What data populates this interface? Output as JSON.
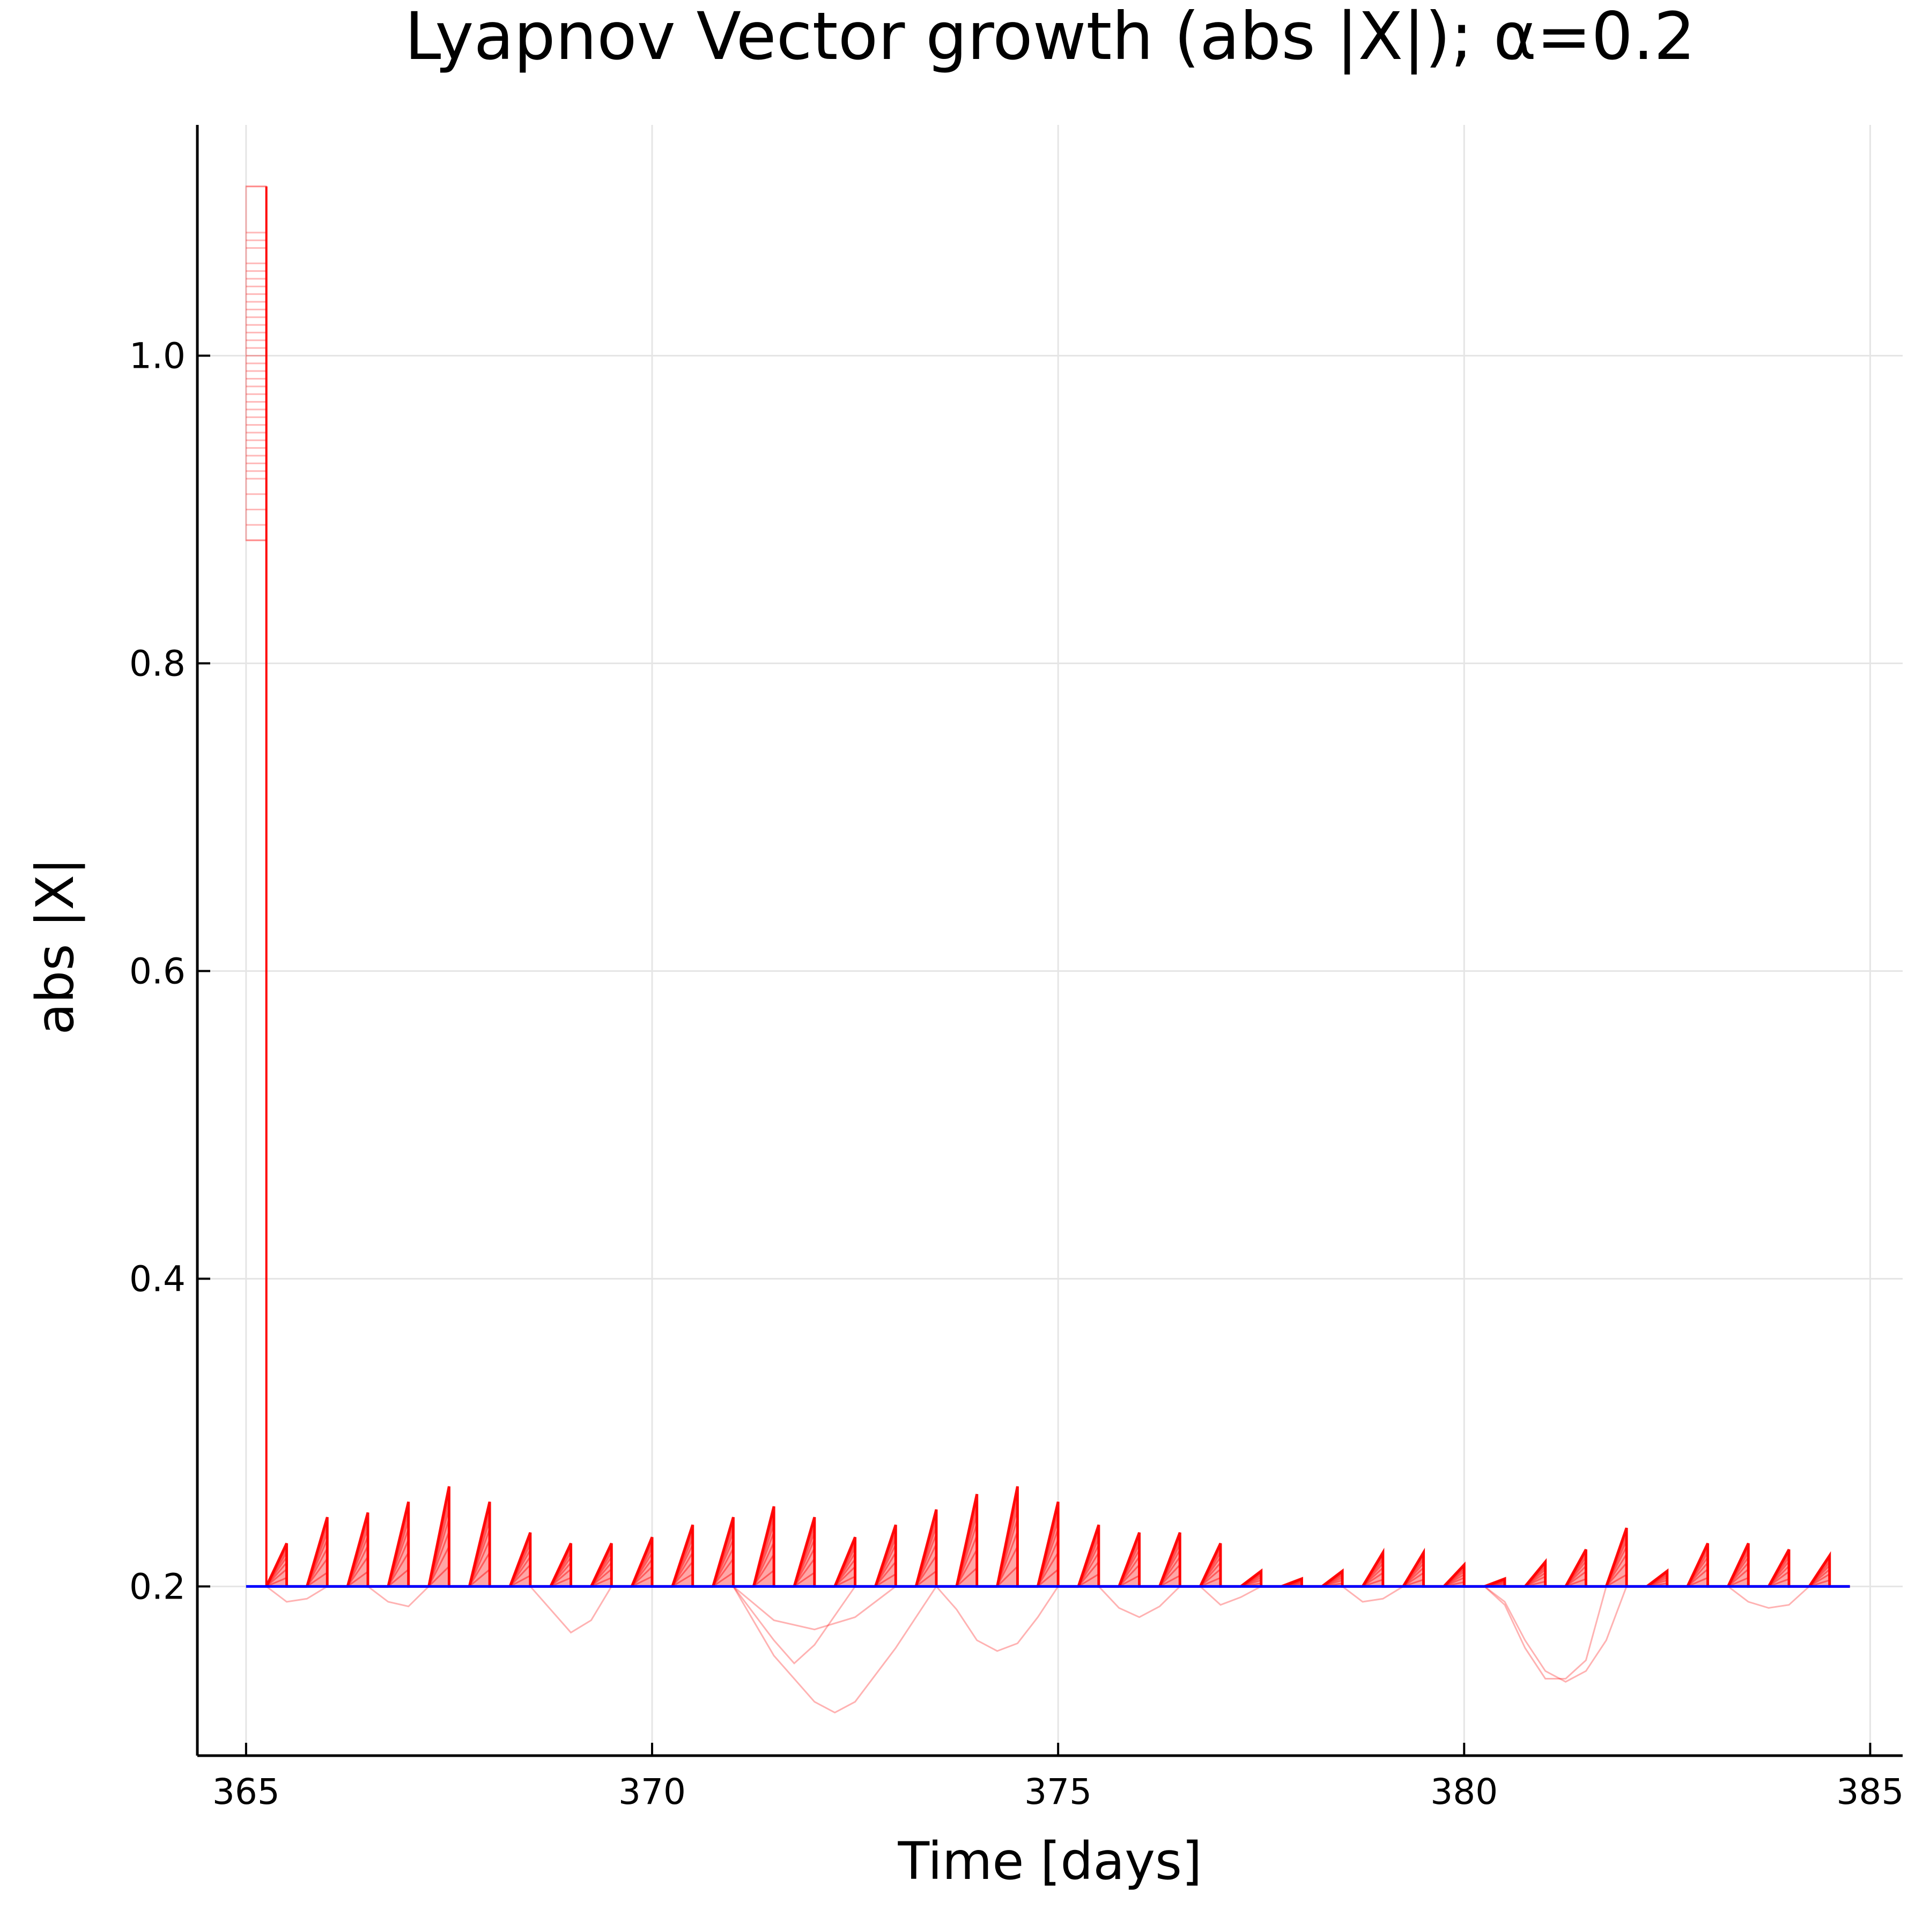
{
  "chart_data": {
    "type": "line",
    "title": "Lyapnov Vector growth (abs |X|); α=0.2",
    "xlabel": "Time [days]",
    "ylabel": "abs |X|",
    "xlim": [
      364.4,
      385.4
    ],
    "ylim": [
      0.09,
      1.15
    ],
    "xticks": [
      365,
      370,
      375,
      380,
      385
    ],
    "xtick_labels": [
      "365",
      "370",
      "375",
      "380",
      "385"
    ],
    "yticks": [
      0.2,
      0.4,
      0.6,
      0.8,
      1.0
    ],
    "ytick_labels": [
      "0.2",
      "0.4",
      "0.6",
      "0.8",
      "1.0"
    ],
    "grid": true,
    "legend": "none",
    "colors": {
      "ensemble": "#ff0000",
      "reference": "#0000ff",
      "grid": "#e5e5e5",
      "axis": "#000000"
    },
    "series": [
      {
        "role": "reference",
        "x": [
          365.0,
          384.75
        ],
        "y": [
          0.2,
          0.2
        ]
      },
      {
        "role": "ensemble-initial",
        "x_range": [
          365.0,
          365.25
        ],
        "y_min": 0.88,
        "y_max": 1.11,
        "y_values": [
          1.11,
          1.08,
          1.075,
          1.07,
          1.06,
          1.055,
          1.05,
          1.045,
          1.04,
          1.035,
          1.03,
          1.025,
          1.02,
          1.015,
          1.01,
          1.005,
          1.0,
          0.995,
          0.99,
          0.985,
          0.98,
          0.975,
          0.97,
          0.965,
          0.96,
          0.955,
          0.95,
          0.945,
          0.94,
          0.935,
          0.93,
          0.925,
          0.92,
          0.91,
          0.9,
          0.89,
          0.88
        ]
      },
      {
        "role": "ensemble-sawtooth",
        "cycle_days": 0.25,
        "baseline": 0.2,
        "start": 365.25,
        "end": 384.75,
        "peaks_x": [
          365.5,
          366.0,
          366.5,
          367.0,
          367.5,
          368.0,
          368.5,
          369.0,
          369.5,
          370.0,
          370.5,
          371.0,
          371.5,
          372.0,
          372.5,
          373.0,
          373.5,
          374.0,
          374.5,
          375.0,
          375.5,
          376.0,
          376.5,
          377.0,
          377.5,
          378.0,
          378.5,
          379.0,
          379.5,
          380.0,
          380.5,
          381.0,
          381.5,
          382.0,
          382.5,
          383.0,
          383.5,
          384.0,
          384.5
        ],
        "peaks_y": [
          0.228,
          0.245,
          0.248,
          0.255,
          0.265,
          0.255,
          0.235,
          0.228,
          0.228,
          0.232,
          0.24,
          0.245,
          0.252,
          0.245,
          0.232,
          0.24,
          0.25,
          0.26,
          0.265,
          0.255,
          0.24,
          0.235,
          0.235,
          0.228,
          0.21,
          0.205,
          0.21,
          0.222,
          0.222,
          0.214,
          0.205,
          0.216,
          0.224,
          0.238,
          0.21,
          0.228,
          0.228,
          0.224,
          0.22
        ]
      },
      {
        "role": "ensemble-dips",
        "curves": [
          {
            "x": [
              365.25,
              365.5,
              365.75,
              366.0
            ],
            "y": [
              0.2,
              0.19,
              0.192,
              0.2
            ]
          },
          {
            "x": [
              366.5,
              366.75,
              367.0,
              367.25
            ],
            "y": [
              0.2,
              0.19,
              0.187,
              0.2
            ]
          },
          {
            "x": [
              368.5,
              368.75,
              369.0,
              369.25,
              369.5
            ],
            "y": [
              0.2,
              0.185,
              0.17,
              0.178,
              0.2
            ]
          },
          {
            "x": [
              371.0,
              371.5,
              372.0,
              372.25,
              372.5,
              373.0,
              373.5
            ],
            "y": [
              0.2,
              0.155,
              0.125,
              0.118,
              0.125,
              0.16,
              0.2
            ]
          },
          {
            "x": [
              371.0,
              371.5,
              371.75,
              372.0,
              372.5
            ],
            "y": [
              0.2,
              0.165,
              0.15,
              0.162,
              0.2
            ]
          },
          {
            "x": [
              371.0,
              371.5,
              372.0,
              372.5,
              373.0
            ],
            "y": [
              0.2,
              0.178,
              0.172,
              0.18,
              0.2
            ]
          },
          {
            "x": [
              373.5,
              373.75,
              374.0,
              374.25,
              374.5,
              374.75,
              375.0
            ],
            "y": [
              0.2,
              0.185,
              0.165,
              0.158,
              0.163,
              0.18,
              0.2
            ]
          },
          {
            "x": [
              375.5,
              375.75,
              376.0,
              376.25,
              376.5
            ],
            "y": [
              0.2,
              0.186,
              0.18,
              0.187,
              0.2
            ]
          },
          {
            "x": [
              376.75,
              377.0,
              377.25,
              377.5
            ],
            "y": [
              0.2,
              0.188,
              0.193,
              0.2
            ]
          },
          {
            "x": [
              378.5,
              378.75,
              379.0,
              379.25
            ],
            "y": [
              0.2,
              0.19,
              0.192,
              0.2
            ]
          },
          {
            "x": [
              380.25,
              380.5,
              380.75,
              381.0,
              381.25,
              381.5,
              381.75,
              382.0
            ],
            "y": [
              0.2,
              0.19,
              0.165,
              0.145,
              0.138,
              0.145,
              0.165,
              0.2
            ]
          },
          {
            "x": [
              380.25,
              380.5,
              380.75,
              381.0,
              381.25,
              381.5,
              381.75
            ],
            "y": [
              0.2,
              0.188,
              0.16,
              0.14,
              0.14,
              0.152,
              0.2
            ]
          },
          {
            "x": [
              383.25,
              383.5,
              383.75,
              384.0,
              384.25
            ],
            "y": [
              0.2,
              0.19,
              0.186,
              0.188,
              0.2
            ]
          }
        ]
      }
    ]
  }
}
